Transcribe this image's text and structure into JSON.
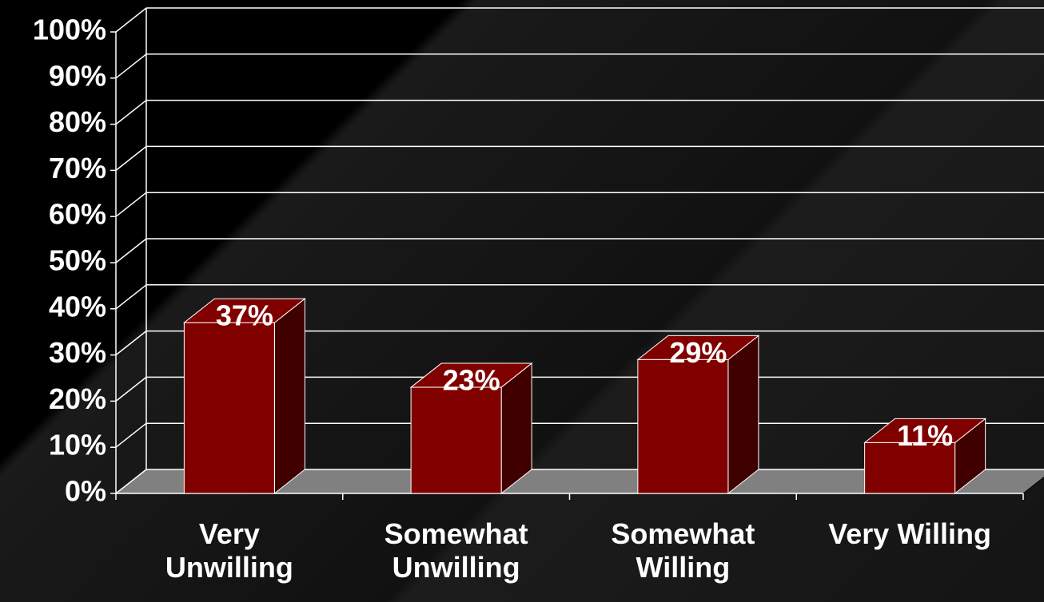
{
  "chart_data": {
    "type": "bar3d",
    "categories": [
      "Very Unwilling",
      "Somewhat Unwilling",
      "Somewhat Willing",
      "Very Willing"
    ],
    "values": [
      37,
      23,
      29,
      11
    ],
    "value_labels": [
      "37%",
      "23%",
      "29%",
      "11%"
    ],
    "color": "#800000",
    "ylim": [
      0,
      100
    ],
    "yticks": [
      {
        "value": 0,
        "label": "0%"
      },
      {
        "value": 10,
        "label": "10%"
      },
      {
        "value": 20,
        "label": "20%"
      },
      {
        "value": 30,
        "label": "30%"
      },
      {
        "value": 40,
        "label": "40%"
      },
      {
        "value": 50,
        "label": "50%"
      },
      {
        "value": 60,
        "label": "60%"
      },
      {
        "value": 70,
        "label": "70%"
      },
      {
        "value": 80,
        "label": "80%"
      },
      {
        "value": 90,
        "label": "90%"
      },
      {
        "value": 100,
        "label": "100%"
      }
    ],
    "grid": true
  }
}
